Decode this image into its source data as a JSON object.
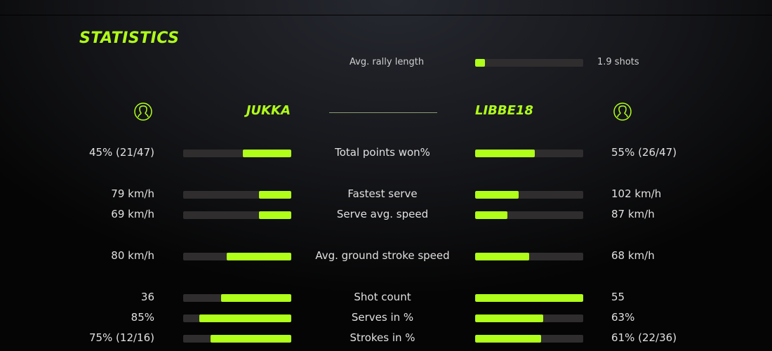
{
  "title": "STATISTICS",
  "accent": "#b0ff1a",
  "rally": {
    "label": "Avg. rally length",
    "value": "1.9 shots",
    "fraction": 0.09
  },
  "players": {
    "left": {
      "name": "JUKKA",
      "icon": "user-icon"
    },
    "right": {
      "name": "LIBBE18",
      "icon": "user-icon"
    }
  },
  "stats": [
    {
      "label": "Total points won%",
      "left": "45% (21/47)",
      "right": "55% (26/47)",
      "left_fill": 0.45,
      "right_fill": 0.55
    },
    {
      "label": "Fastest serve",
      "left": "79 km/h",
      "right": "102 km/h",
      "left_fill": 0.3,
      "right_fill": 0.4
    },
    {
      "label": "Serve avg. speed",
      "left": "69 km/h",
      "right": "87 km/h",
      "left_fill": 0.3,
      "right_fill": 0.3
    },
    {
      "label": "Avg. ground stroke speed",
      "left": "80 km/h",
      "right": "68 km/h",
      "left_fill": 0.6,
      "right_fill": 0.5
    },
    {
      "label": "Shot count",
      "left": "36",
      "right": "55",
      "left_fill": 0.65,
      "right_fill": 1.0
    },
    {
      "label": "Serves in %",
      "left": "85%",
      "right": "63%",
      "left_fill": 0.85,
      "right_fill": 0.63
    },
    {
      "label": "Strokes in %",
      "left": "75% (12/16)",
      "right": "61% (22/36)",
      "left_fill": 0.75,
      "right_fill": 0.61
    }
  ]
}
